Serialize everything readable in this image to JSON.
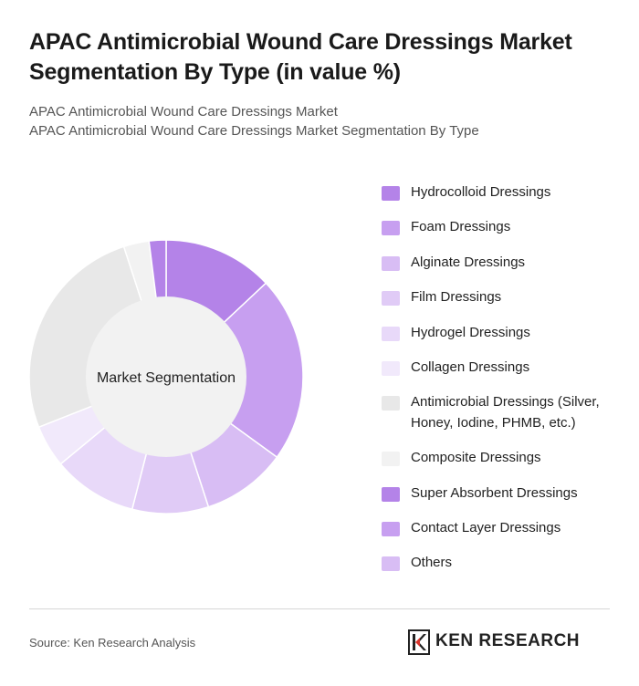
{
  "header": {
    "title": "APAC Antimicrobial Wound Care Dressings Market Segmentation By Type (in value %)",
    "subtitle_1": "APAC Antimicrobial Wound Care Dressings Market",
    "subtitle_2": "APAC Antimicrobial Wound Care Dressings Market Segmentation By Type"
  },
  "chart_data": {
    "type": "pie",
    "variant": "donut",
    "center_label": "Market Segmentation",
    "slices": [
      {
        "label": "Hydrocolloid Dressings",
        "value": 13,
        "color": "#b483e8"
      },
      {
        "label": "Foam Dressings",
        "value": 22,
        "color": "#c79ff0"
      },
      {
        "label": "Alginate Dressings",
        "value": 10,
        "color": "#d8bdf4"
      },
      {
        "label": "Film Dressings",
        "value": 9,
        "color": "#e0cbf6"
      },
      {
        "label": "Hydrogel Dressings",
        "value": 10,
        "color": "#e8d9f9"
      },
      {
        "label": "Collagen Dressings",
        "value": 5,
        "color": "#f1e9fb"
      },
      {
        "label": "Antimicrobial Dressings (Silver, Honey, Iodine, PHMB, etc.)",
        "value": 26,
        "color": "#e8e8e8"
      },
      {
        "label": "Composite Dressings",
        "value": 3,
        "color": "#f2f2f2"
      },
      {
        "label": "Super Absorbent Dressings",
        "value": 2,
        "color": "#b483e8"
      },
      {
        "label": "Contact Layer Dressings",
        "value": 0,
        "color": "#c79ff0"
      },
      {
        "label": "Others",
        "value": 0,
        "color": "#d8bdf4"
      }
    ],
    "legend_position": "right"
  },
  "footer": {
    "source": "Source: Ken Research Analysis",
    "logo_text": "KEN RESEARCH"
  }
}
